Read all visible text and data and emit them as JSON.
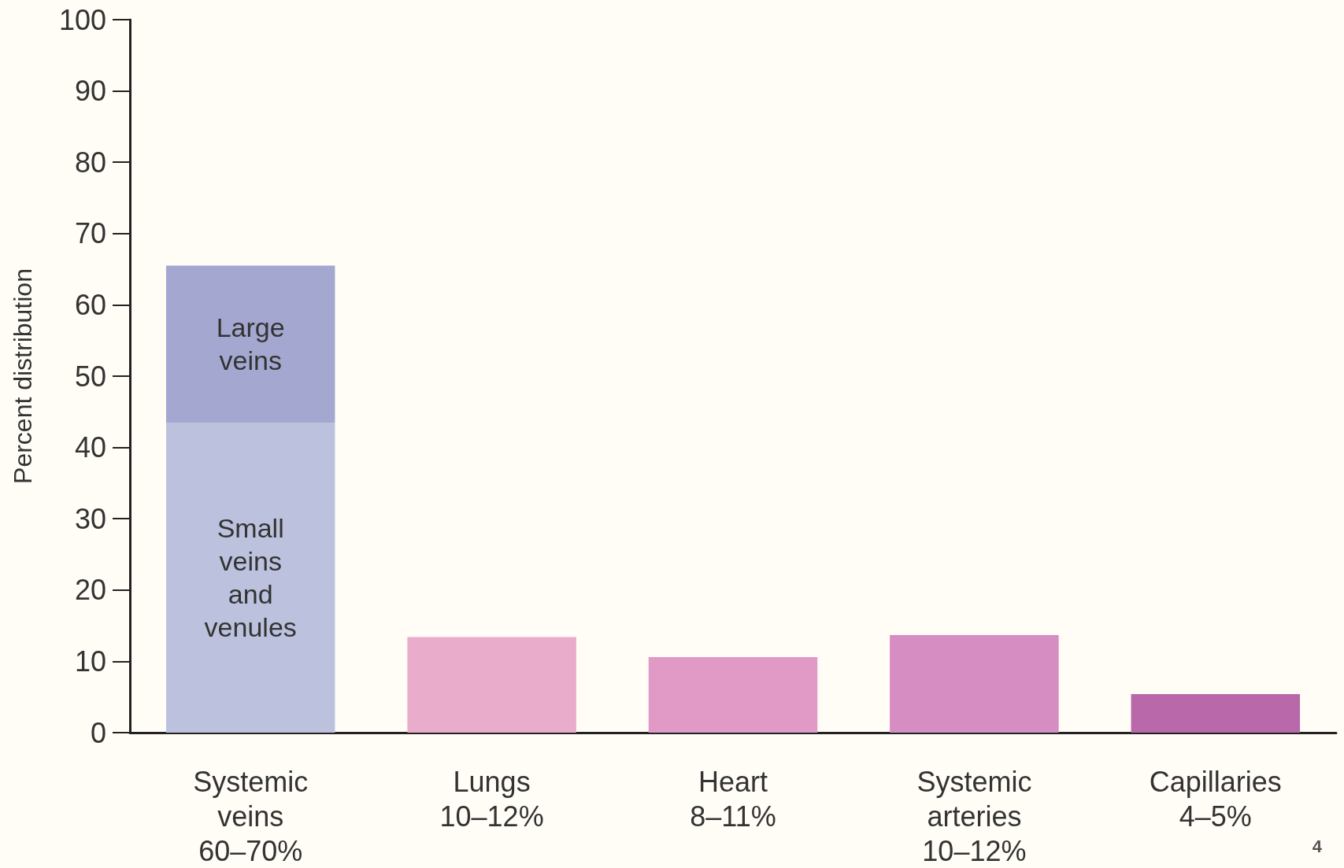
{
  "chart_data": {
    "type": "bar",
    "stacked": true,
    "ylabel": "Percent distribution",
    "categories": [
      "Systemic\nveins\n60–70%",
      "Lungs\n10–12%",
      "Heart\n8–11%",
      "Systemic\narteries\n10–12%",
      "Capillaries\n4–5%"
    ],
    "series": [
      {
        "name": "Small\nveins\nand\nvenules",
        "colors": [
          "#bcc2de",
          "#eaaccb",
          "#e19ac6",
          "#d68dc1",
          "#b968aa"
        ],
        "values": [
          43.5,
          13.4,
          10.6,
          13.7,
          5.4
        ]
      },
      {
        "name": "Large\nveins",
        "color": "#a4a8d0",
        "values": [
          22,
          null,
          null,
          null,
          null
        ]
      }
    ],
    "ylim": [
      0,
      100
    ],
    "yticks": [
      0,
      10,
      20,
      30,
      40,
      50,
      60,
      70,
      80,
      90,
      100
    ],
    "grid": false,
    "legend": false,
    "annotations": [
      "4"
    ]
  }
}
